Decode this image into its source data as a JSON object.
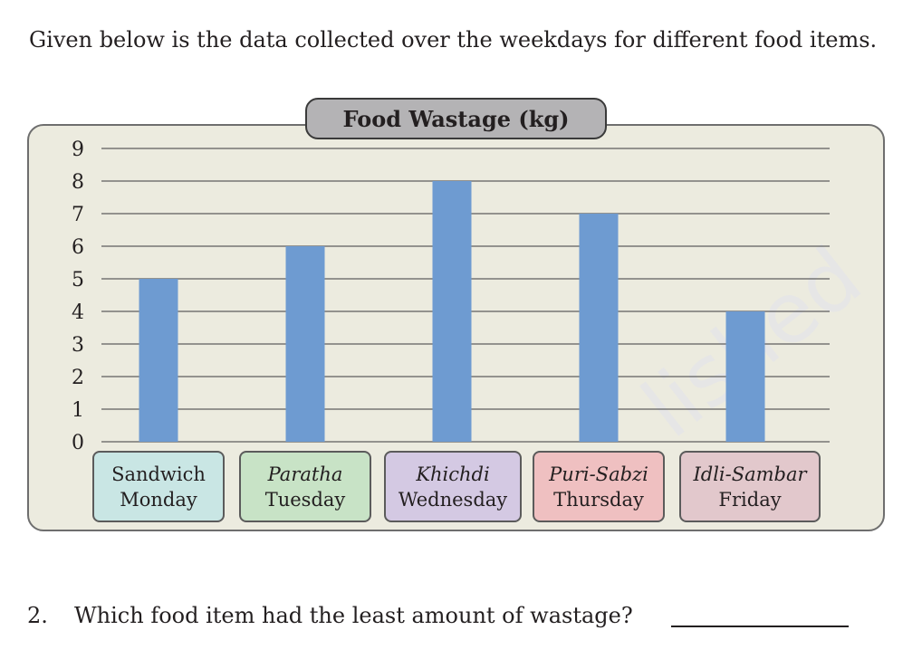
{
  "intro_text": "Given below is the data collected over the weekdays for different food items.",
  "chart_data": {
    "type": "bar",
    "title": "Food Wastage (kg)",
    "xlabel": "",
    "ylabel": "",
    "ylim": [
      0,
      9
    ],
    "yticks": [
      "0",
      "1",
      "2",
      "3",
      "4",
      "5",
      "6",
      "7",
      "8",
      "9"
    ],
    "grid": true,
    "bar_color": "#6e9bd1",
    "categories": [
      {
        "food": "Sandwich",
        "day": "Monday",
        "food_italic": false,
        "color": "#c9e6e4"
      },
      {
        "food": "Paratha",
        "day": "Tuesday",
        "food_italic": true,
        "color": "#c8e3c6"
      },
      {
        "food": "Khichdi",
        "day": "Wednesday",
        "food_italic": true,
        "color": "#d4c9e3"
      },
      {
        "food": "Puri-Sabzi",
        "day": "Thursday",
        "food_italic": true,
        "color": "#efc0c1"
      },
      {
        "food": "Idli-Sambar",
        "day": "Friday",
        "food_italic": true,
        "color": "#e2c8cc"
      }
    ],
    "values": [
      5,
      6,
      8,
      7,
      4
    ]
  },
  "question": {
    "number": "2.",
    "text": "Which food item had the least amount of wastage?"
  },
  "watermark": "lished"
}
